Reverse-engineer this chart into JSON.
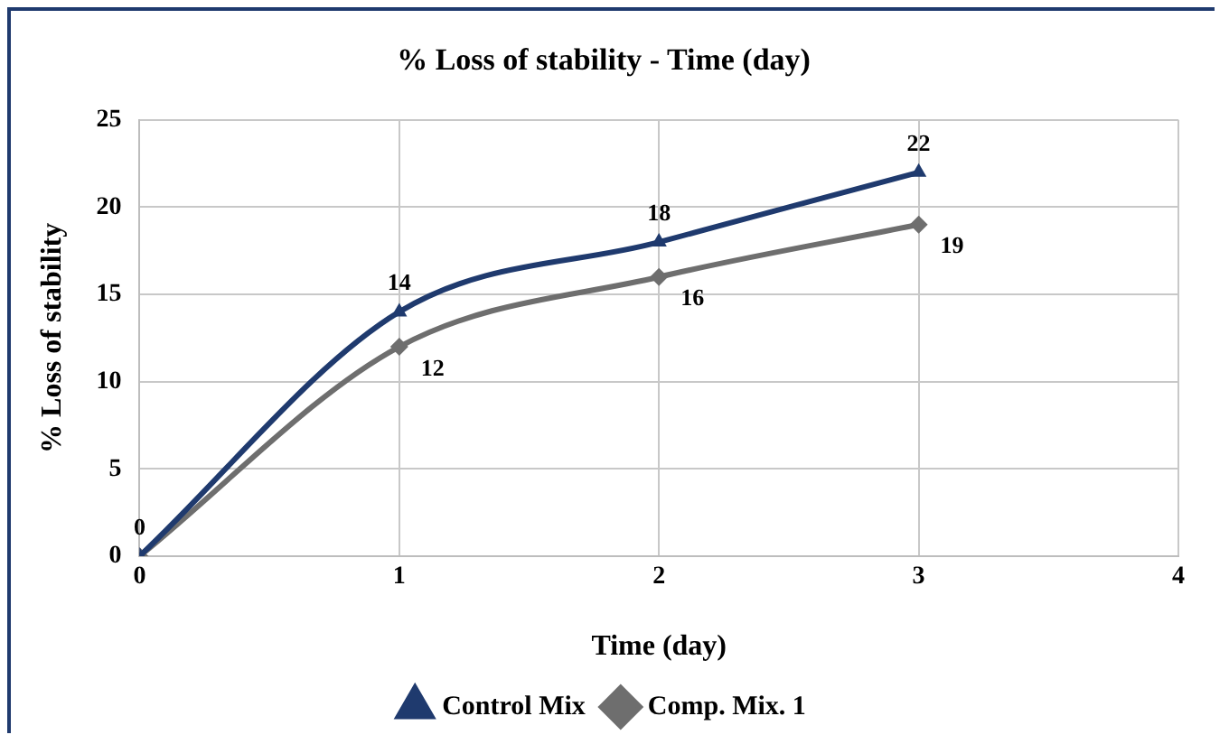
{
  "chart_data": {
    "type": "line",
    "title": "% Loss of stability - Time (day)",
    "xlabel": "Time (day)",
    "ylabel": "% Loss of stability",
    "x": [
      0,
      1,
      2,
      3
    ],
    "xlim": [
      0,
      4
    ],
    "xticks": [
      0,
      1,
      2,
      3,
      4
    ],
    "ylim": [
      0,
      25
    ],
    "yticks": [
      0,
      5,
      10,
      15,
      20,
      25
    ],
    "grid": true,
    "legend": "bottom",
    "series": [
      {
        "name": "Control Mix",
        "color": "#1f3a6e",
        "marker": "triangle",
        "values": [
          0,
          14,
          18,
          22
        ],
        "value_labels": [
          "0",
          "14",
          "18",
          "22"
        ]
      },
      {
        "name": "Comp. Mix. 1",
        "color": "#6e6e6e",
        "marker": "diamond",
        "values": [
          0,
          12,
          16,
          19
        ],
        "value_labels": [
          null,
          "12",
          "16",
          "19"
        ]
      }
    ]
  }
}
